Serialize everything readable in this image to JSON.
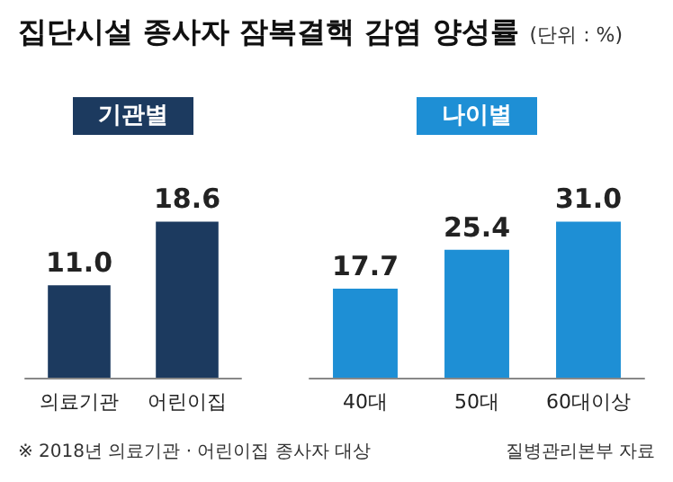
{
  "chart_data": [
    {
      "type": "bar",
      "title": "기관별",
      "categories": [
        "의료기관",
        "어린이집"
      ],
      "values": [
        11.0,
        18.6
      ],
      "value_labels": [
        "11.0",
        "18.6"
      ],
      "color": "#1c3a5f",
      "annotations": [
        "집단시설 종사자 잠복결핵 감염 양성률",
        "(단위 : %)",
        "※ 2018년 의료기관 · 어린이집 종사자 대상"
      ]
    },
    {
      "type": "bar",
      "title": "나이별",
      "categories": [
        "40대",
        "50대",
        "60대이상"
      ],
      "values": [
        17.7,
        25.4,
        31.0
      ],
      "value_labels": [
        "17.7",
        "25.4",
        "31.0"
      ],
      "color": "#1e8fd5",
      "annotations": [
        "질병관리본부 자료"
      ]
    }
  ]
}
